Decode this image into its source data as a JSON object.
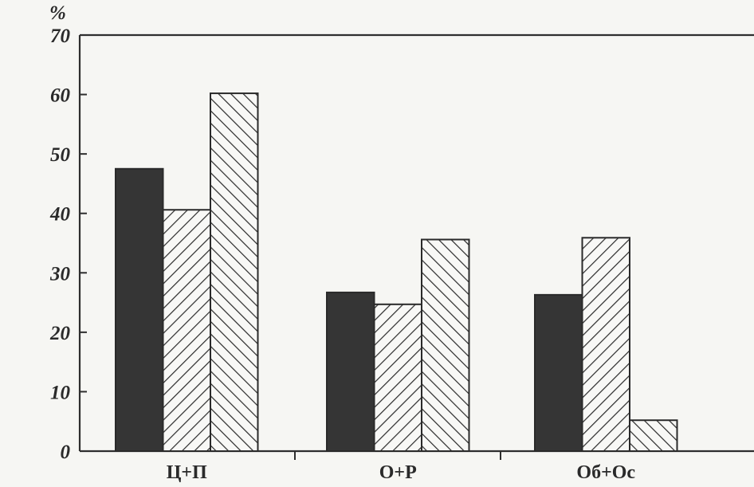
{
  "chart_data": {
    "type": "bar",
    "title": "",
    "xlabel": "",
    "ylabel": "%",
    "ylim": [
      0,
      70
    ],
    "yticks": [
      0,
      10,
      20,
      30,
      40,
      50,
      60,
      70
    ],
    "grid": false,
    "legend": "none",
    "categories": [
      "Ц+П",
      "О+Р",
      "Об+Ос"
    ],
    "series": [
      {
        "pattern": "solid-black",
        "color": "#333333",
        "values": [
          47.5,
          26.7,
          26.3
        ]
      },
      {
        "pattern": "hatch-forward",
        "color": "#2a2a2a",
        "values": [
          40.6,
          24.7,
          35.9
        ]
      },
      {
        "pattern": "hatch-backward",
        "color": "#2a2a2a",
        "values": [
          60.2,
          35.6,
          5.2
        ]
      }
    ]
  }
}
